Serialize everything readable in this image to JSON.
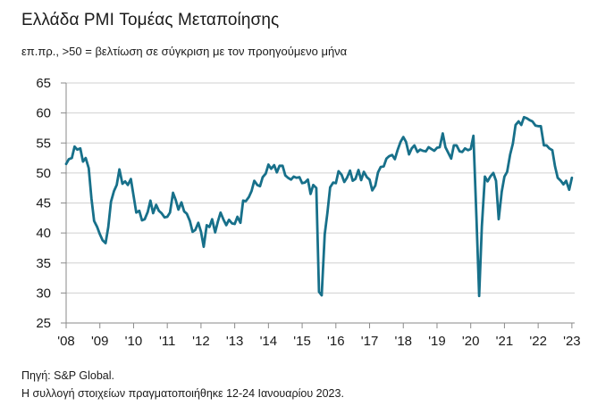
{
  "title": "Ελλάδα PMI Τομέας Μεταποίησης",
  "subtitle": "επ.πρ., >50 = βελτίωση σε σύγκριση με τον προηγούμενο μήνα",
  "source": "Πηγή: S&P Global.",
  "note": "Η συλλογή στοιχείων πραγματοποιήθηκε 12-24 Ιανουαρίου 2023.",
  "colors": {
    "line": "#17708a",
    "axis": "#8a8a8a",
    "grid": "#d0d0d0"
  },
  "chart_data": {
    "type": "line",
    "title": "Ελλάδα PMI Τομέας Μεταποίησης",
    "subtitle": "επ.πρ., >50 = βελτίωση σε σύγκριση με τον προηγούμενο μήνα",
    "xlabel": "",
    "ylabel": "",
    "ylim": [
      25,
      65
    ],
    "xlim": [
      2008.0,
      2023.083
    ],
    "grid": "horizontal",
    "y_ticks": [
      25,
      30,
      35,
      40,
      45,
      50,
      55,
      60,
      65
    ],
    "x_ticks": [
      {
        "label": "'08",
        "value": 2008
      },
      {
        "label": "'09",
        "value": 2009
      },
      {
        "label": "'10",
        "value": 2010
      },
      {
        "label": "'11",
        "value": 2011
      },
      {
        "label": "'12",
        "value": 2012
      },
      {
        "label": "'13",
        "value": 2013
      },
      {
        "label": "'14",
        "value": 2014
      },
      {
        "label": "'15",
        "value": 2015
      },
      {
        "label": "'16",
        "value": 2016
      },
      {
        "label": "'17",
        "value": 2017
      },
      {
        "label": "'18",
        "value": 2018
      },
      {
        "label": "'19",
        "value": 2019
      },
      {
        "label": "'20",
        "value": 2020
      },
      {
        "label": "'21",
        "value": 2021
      },
      {
        "label": "'22",
        "value": 2022
      },
      {
        "label": "'23",
        "value": 2023
      }
    ],
    "series": [
      {
        "x": [
          2008.0,
          2008.08,
          2008.17,
          2008.25,
          2008.33,
          2008.42,
          2008.5,
          2008.58,
          2008.67,
          2008.75,
          2008.83,
          2008.92,
          2009.0,
          2009.08,
          2009.17,
          2009.25,
          2009.33,
          2009.42,
          2009.5,
          2009.58,
          2009.67,
          2009.75,
          2009.83,
          2009.92,
          2010.0,
          2010.08,
          2010.17,
          2010.25,
          2010.33,
          2010.42,
          2010.5,
          2010.58,
          2010.67,
          2010.75,
          2010.83,
          2010.92,
          2011.0,
          2011.08,
          2011.17,
          2011.25,
          2011.33,
          2011.42,
          2011.5,
          2011.58,
          2011.67,
          2011.75,
          2011.83,
          2011.92,
          2012.0,
          2012.08,
          2012.17,
          2012.25,
          2012.33,
          2012.42,
          2012.5,
          2012.58,
          2012.67,
          2012.75,
          2012.83,
          2012.92,
          2013.0,
          2013.08,
          2013.17,
          2013.25,
          2013.33,
          2013.42,
          2013.5,
          2013.58,
          2013.67,
          2013.75,
          2013.83,
          2013.92,
          2014.0,
          2014.08,
          2014.17,
          2014.25,
          2014.33,
          2014.42,
          2014.5,
          2014.58,
          2014.67,
          2014.75,
          2014.83,
          2014.92,
          2015.0,
          2015.08,
          2015.17,
          2015.25,
          2015.33,
          2015.42,
          2015.5,
          2015.58,
          2015.67,
          2015.75,
          2015.83,
          2015.92,
          2016.0,
          2016.08,
          2016.17,
          2016.25,
          2016.33,
          2016.42,
          2016.5,
          2016.58,
          2016.67,
          2016.75,
          2016.83,
          2016.92,
          2017.0,
          2017.08,
          2017.17,
          2017.25,
          2017.33,
          2017.42,
          2017.5,
          2017.58,
          2017.67,
          2017.75,
          2017.83,
          2017.92,
          2018.0,
          2018.08,
          2018.17,
          2018.25,
          2018.33,
          2018.42,
          2018.5,
          2018.58,
          2018.67,
          2018.75,
          2018.83,
          2018.92,
          2019.0,
          2019.08,
          2019.17,
          2019.25,
          2019.33,
          2019.42,
          2019.5,
          2019.58,
          2019.67,
          2019.75,
          2019.83,
          2019.92,
          2020.0,
          2020.08,
          2020.17,
          2020.25,
          2020.33,
          2020.42,
          2020.5,
          2020.58,
          2020.67,
          2020.75,
          2020.83,
          2020.92,
          2021.0,
          2021.08,
          2021.17,
          2021.25,
          2021.33,
          2021.42,
          2021.5,
          2021.58,
          2021.67,
          2021.75,
          2021.83,
          2021.92,
          2022.0,
          2022.08,
          2022.17,
          2022.25,
          2022.33,
          2022.42,
          2022.5,
          2022.58,
          2022.67,
          2022.75,
          2022.83,
          2022.92,
          2023.0
        ],
        "values": [
          51.5,
          52.3,
          52.5,
          54.4,
          53.9,
          54.1,
          51.9,
          52.5,
          50.8,
          45.8,
          42.0,
          41.0,
          39.8,
          38.8,
          38.3,
          41.0,
          45.2,
          47.0,
          48.0,
          50.6,
          48.2,
          48.6,
          48.0,
          49.0,
          46.2,
          43.4,
          43.7,
          42.1,
          42.3,
          43.5,
          45.4,
          43.3,
          44.7,
          43.7,
          43.3,
          42.6,
          42.7,
          43.4,
          46.7,
          45.5,
          43.9,
          45.1,
          43.6,
          43.2,
          42.0,
          40.2,
          40.5,
          41.7,
          40.2,
          37.7,
          41.3,
          41.0,
          42.3,
          40.1,
          41.9,
          43.4,
          42.2,
          41.3,
          42.2,
          41.6,
          41.5,
          42.7,
          41.7,
          45.4,
          45.3,
          46.0,
          47.0,
          48.7,
          48.0,
          47.8,
          49.3,
          49.9,
          51.4,
          50.7,
          51.3,
          50.1,
          51.2,
          51.2,
          49.6,
          49.2,
          48.9,
          49.4,
          49.2,
          49.3,
          48.3,
          48.4,
          48.9,
          46.5,
          48.0,
          47.5,
          30.2,
          29.6,
          39.8,
          43.4,
          47.6,
          48.4,
          48.3,
          50.3,
          49.7,
          48.5,
          49.2,
          50.4,
          48.7,
          49.0,
          50.5,
          48.8,
          50.2,
          49.3,
          48.9,
          47.1,
          47.9,
          50.1,
          51.0,
          51.1,
          52.4,
          52.8,
          53.0,
          52.3,
          53.8,
          55.2,
          56.0,
          55.2,
          53.1,
          54.1,
          54.6,
          53.5,
          53.9,
          53.7,
          53.6,
          54.3,
          54.0,
          53.7,
          54.2,
          54.3,
          56.6,
          54.3,
          53.4,
          52.4,
          54.6,
          54.6,
          53.6,
          53.5,
          54.1,
          53.8,
          54.0,
          56.2,
          42.5,
          29.5,
          41.1,
          49.4,
          48.6,
          49.4,
          50.0,
          48.7,
          42.3,
          46.9,
          49.4,
          50.2,
          53.1,
          54.9,
          58.0,
          58.6,
          58.0,
          59.3,
          59.1,
          58.8,
          58.6,
          57.9,
          57.8,
          57.8,
          54.6,
          54.6,
          54.1,
          53.8,
          51.1,
          49.2,
          48.7,
          48.1,
          48.7,
          47.2,
          49.2
        ]
      }
    ]
  }
}
